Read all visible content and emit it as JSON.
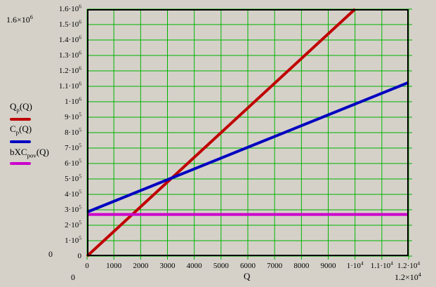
{
  "colors": {
    "background": "#d5d1c9",
    "grid": "#00b400",
    "frame": "#000000",
    "revenue_line": "#c00000",
    "cost_line": "#0000c0",
    "fixed_line": "#cc00cc",
    "label_text": "#000000"
  },
  "chart_data": {
    "type": "line",
    "title": "",
    "xlabel": "Q",
    "ylabel": "",
    "xlim": [
      0,
      12000
    ],
    "ylim": [
      0,
      1600000
    ],
    "grid": {
      "on": true,
      "x_step": 1000,
      "y_step": 100000,
      "color": "#00b400"
    },
    "legend_position": "left",
    "x_tick_labels": [
      "0",
      "1000",
      "2000",
      "3000",
      "4000",
      "5000",
      "6000",
      "7000",
      "8000",
      "9000",
      "1·10^4",
      "1.1·10^4",
      "1.2·10^4"
    ],
    "y_tick_labels": [
      "0",
      "1·10^5",
      "2·10^5",
      "3·10^5",
      "4·10^5",
      "5·10^5",
      "6·10^5",
      "7·10^5",
      "8·10^5",
      "9·10^5",
      "1·10^6",
      "1.1·10^6",
      "1.2·10^6",
      "1.3·10^6",
      "1.4·10^6",
      "1.5·10^6",
      "1.6·10^6"
    ],
    "axis_limit_labels": {
      "y_max": "1.6×10^6",
      "y_min": "0",
      "x_min": "0",
      "x_max": "1.2×10^4"
    },
    "series": [
      {
        "id": "qp",
        "label_pre": "Q",
        "label_sub": "p",
        "label_post": "(Q)",
        "color": "#c00000",
        "width": 4,
        "points": [
          [
            0,
            0
          ],
          [
            10000,
            1600000
          ]
        ]
      },
      {
        "id": "cp",
        "label_pre": "C",
        "label_sub": "p",
        "label_post": "(Q)",
        "color": "#0000c0",
        "width": 4,
        "points": [
          [
            0,
            285000
          ],
          [
            12000,
            1125000
          ]
        ]
      },
      {
        "id": "bxcpov",
        "label_pre": "bXC",
        "label_sub": "pov",
        "label_post": "(Q)",
        "color": "#cc00cc",
        "width": 4,
        "points": [
          [
            0,
            270000
          ],
          [
            12000,
            270000
          ]
        ]
      }
    ]
  }
}
